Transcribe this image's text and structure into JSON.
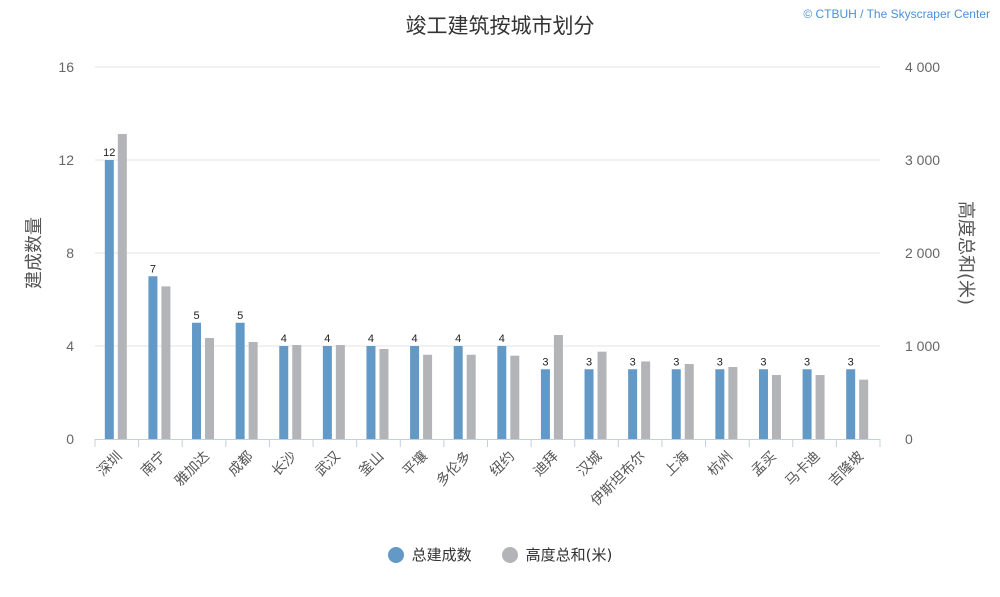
{
  "chart_data": {
    "type": "bar",
    "title": "竣工建筑按城市划分",
    "credit": "© CTBUH / The Skyscraper Center",
    "categories": [
      "深圳",
      "南宁",
      "雅加达",
      "成都",
      "长沙",
      "武汉",
      "釜山",
      "平壤",
      "多伦多",
      "纽约",
      "迪拜",
      "汉城",
      "伊斯坦布尔",
      "上海",
      "杭州",
      "孟买",
      "马卡迪",
      "吉隆坡"
    ],
    "series": [
      {
        "name": "总建成数",
        "axis": "left",
        "color": "#6399c6",
        "values": [
          12,
          7,
          5,
          5,
          4,
          4,
          4,
          4,
          4,
          4,
          3,
          3,
          3,
          3,
          3,
          3,
          3,
          3
        ],
        "data_labels": true
      },
      {
        "name": "高度总和(米)",
        "axis": "right",
        "color": "#b3b4b7",
        "values": [
          3280,
          1641,
          1086,
          1043,
          1011,
          1011,
          968,
          906,
          906,
          896,
          1118,
          939,
          834,
          806,
          774,
          688,
          688,
          638
        ],
        "data_labels": false
      }
    ],
    "ylabel": "建成数量",
    "ylabel_right": "高度总和(米)",
    "ylim": [
      0,
      16
    ],
    "ylim_right": [
      0,
      4000
    ],
    "yticks": [
      "0",
      "4",
      "8",
      "12",
      "16"
    ],
    "yticks_right": [
      "0",
      "1 000",
      "2 000",
      "3 000",
      "4 000"
    ],
    "grid": true,
    "legend": "bottom-center"
  }
}
